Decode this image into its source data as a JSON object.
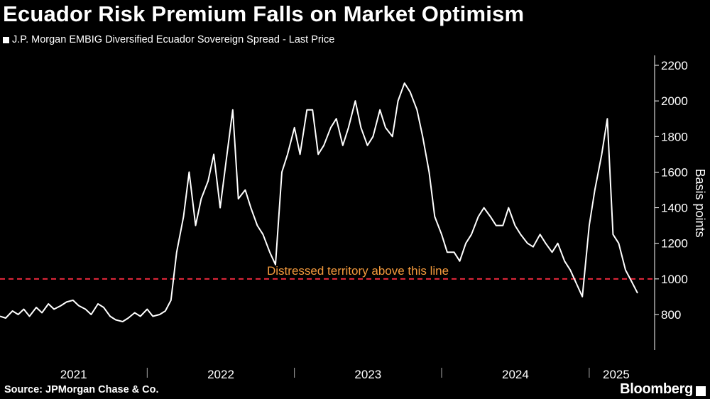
{
  "title": "Ecuador Risk Premium Falls on Market Optimism",
  "legend_label": "J.P. Morgan EMBIG Diversified Ecuador Sovereign Spread - Last Price",
  "source": "Source: JPMorgan Chase & Co.",
  "brand": "Bloomberg",
  "colors": {
    "background": "#000000",
    "series_line": "#ffffff",
    "threshold_line": "#e8283c",
    "annotation": "#f59b3d",
    "axis": "#ffffff"
  },
  "chart_data": {
    "type": "line",
    "ylabel": "Basis points",
    "ylim": [
      600,
      2300
    ],
    "y_ticks": [
      800,
      1000,
      1200,
      1400,
      1600,
      1800,
      2000,
      2200
    ],
    "x_tick_labels": [
      "2021",
      "2022",
      "2023",
      "2024",
      "2025"
    ],
    "x_range": [
      "2021-01-01",
      "2025-05-15"
    ],
    "grid": false,
    "threshold": {
      "value": 1000,
      "label": "Distressed territory above this line"
    },
    "series": [
      {
        "name": "J.P. Morgan EMBIG Diversified Ecuador Sovereign Spread - Last Price",
        "x": [
          "2021-01-01",
          "2021-01-15",
          "2021-02-01",
          "2021-02-15",
          "2021-03-01",
          "2021-03-15",
          "2021-04-01",
          "2021-04-15",
          "2021-05-01",
          "2021-05-15",
          "2021-06-01",
          "2021-06-15",
          "2021-07-01",
          "2021-07-15",
          "2021-08-01",
          "2021-08-15",
          "2021-09-01",
          "2021-09-15",
          "2021-10-01",
          "2021-10-15",
          "2021-11-01",
          "2021-11-15",
          "2021-12-01",
          "2021-12-15",
          "2022-01-01",
          "2022-01-15",
          "2022-02-01",
          "2022-02-15",
          "2022-03-01",
          "2022-03-15",
          "2022-04-01",
          "2022-04-15",
          "2022-05-01",
          "2022-05-15",
          "2022-06-01",
          "2022-06-15",
          "2022-07-01",
          "2022-07-15",
          "2022-08-01",
          "2022-08-15",
          "2022-09-01",
          "2022-09-15",
          "2022-10-01",
          "2022-10-15",
          "2022-11-01",
          "2022-11-15",
          "2022-12-01",
          "2022-12-15",
          "2023-01-01",
          "2023-01-15",
          "2023-02-01",
          "2023-02-15",
          "2023-03-01",
          "2023-03-15",
          "2023-04-01",
          "2023-04-15",
          "2023-05-01",
          "2023-05-15",
          "2023-06-01",
          "2023-06-15",
          "2023-07-01",
          "2023-07-15",
          "2023-08-01",
          "2023-08-15",
          "2023-09-01",
          "2023-09-15",
          "2023-10-01",
          "2023-10-15",
          "2023-11-01",
          "2023-11-15",
          "2023-12-01",
          "2023-12-15",
          "2024-01-01",
          "2024-01-15",
          "2024-02-01",
          "2024-02-15",
          "2024-03-01",
          "2024-03-15",
          "2024-04-01",
          "2024-04-15",
          "2024-05-01",
          "2024-05-15",
          "2024-06-01",
          "2024-06-15",
          "2024-07-01",
          "2024-07-15",
          "2024-08-01",
          "2024-08-15",
          "2024-09-01",
          "2024-09-15",
          "2024-10-01",
          "2024-10-15",
          "2024-11-01",
          "2024-11-15",
          "2024-12-01",
          "2024-12-15",
          "2025-01-01",
          "2025-01-15",
          "2025-02-01",
          "2025-02-15",
          "2025-03-01",
          "2025-03-15",
          "2025-04-01",
          "2025-04-15",
          "2025-05-01"
        ],
        "values": [
          790,
          780,
          820,
          800,
          830,
          790,
          840,
          810,
          860,
          830,
          850,
          870,
          880,
          850,
          830,
          800,
          860,
          840,
          790,
          770,
          760,
          780,
          810,
          790,
          830,
          790,
          800,
          820,
          880,
          1150,
          1350,
          1600,
          1300,
          1450,
          1550,
          1700,
          1400,
          1650,
          1950,
          1450,
          1500,
          1400,
          1300,
          1250,
          1150,
          1080,
          1600,
          1700,
          1850,
          1700,
          1950,
          1950,
          1700,
          1750,
          1850,
          1900,
          1750,
          1850,
          2000,
          1850,
          1750,
          1800,
          1950,
          1850,
          1800,
          2000,
          2100,
          2050,
          1950,
          1800,
          1600,
          1350,
          1250,
          1150,
          1150,
          1100,
          1200,
          1250,
          1350,
          1400,
          1350,
          1300,
          1300,
          1400,
          1300,
          1250,
          1200,
          1180,
          1250,
          1200,
          1150,
          1200,
          1100,
          1050,
          970,
          900,
          1300,
          1500,
          1700,
          1900,
          1250,
          1200,
          1050,
          990,
          920
        ]
      }
    ]
  }
}
